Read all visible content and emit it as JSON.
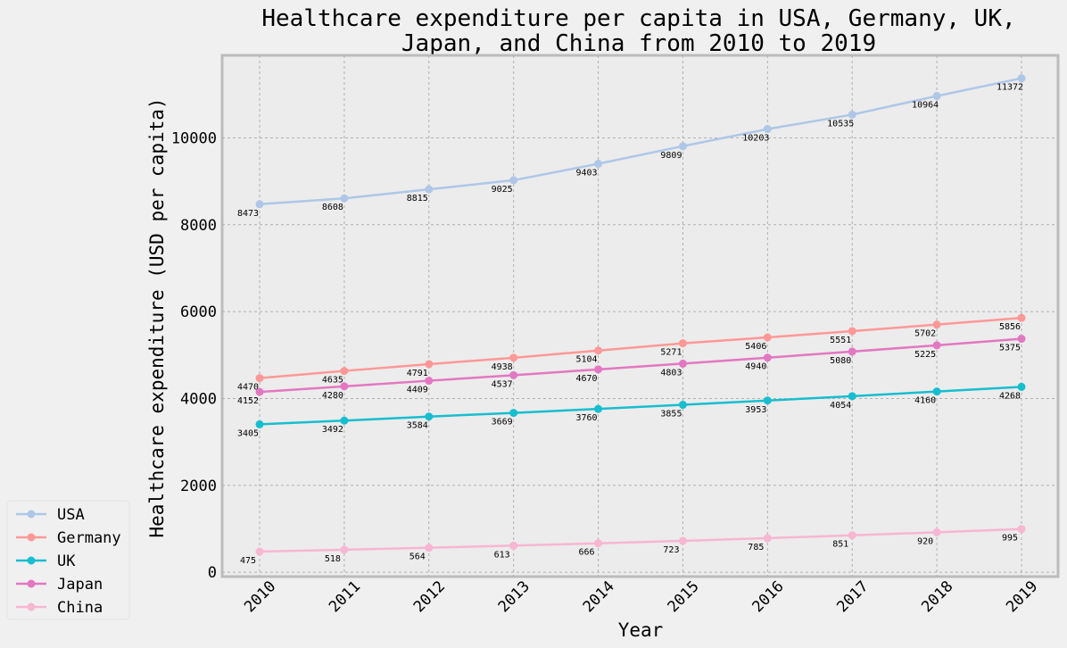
{
  "chart_data": {
    "type": "line",
    "title_lines": [
      "Healthcare expenditure per capita in USA, Germany, UK,",
      "Japan, and China from 2010 to 2019"
    ],
    "xlabel": "Year",
    "ylabel": "Healthcare expenditure (USD per capita)",
    "x": [
      "2010",
      "2011",
      "2012",
      "2013",
      "2014",
      "2015",
      "2016",
      "2017",
      "2018",
      "2019"
    ],
    "ylim": [
      -100,
      11900
    ],
    "yticks": [
      0,
      2000,
      4000,
      6000,
      8000,
      10000
    ],
    "grid": true,
    "legend_position": "bottom-left, outside plot",
    "series": [
      {
        "name": "USA",
        "color": "#aec7e8",
        "values": [
          8473,
          8608,
          8815,
          9025,
          9403,
          9809,
          10203,
          10535,
          10964,
          11372
        ]
      },
      {
        "name": "Germany",
        "color": "#ff9896",
        "values": [
          4470,
          4635,
          4791,
          4938,
          5104,
          5271,
          5406,
          5551,
          5702,
          5856
        ]
      },
      {
        "name": "UK",
        "color": "#17becf",
        "values": [
          3405,
          3492,
          3584,
          3669,
          3760,
          3855,
          3953,
          4054,
          4160,
          4268
        ]
      },
      {
        "name": "Japan",
        "color": "#e377c2",
        "values": [
          4152,
          4280,
          4409,
          4537,
          4670,
          4803,
          4940,
          5080,
          5225,
          5375
        ]
      },
      {
        "name": "China",
        "color": "#f7b6d2",
        "values": [
          475,
          518,
          564,
          613,
          666,
          723,
          785,
          851,
          920,
          995
        ]
      }
    ]
  }
}
